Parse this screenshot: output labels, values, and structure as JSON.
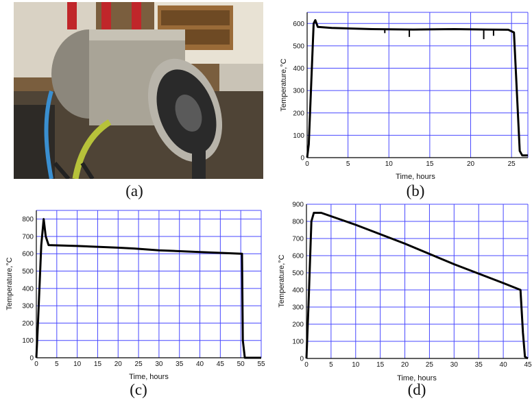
{
  "captions": {
    "a": "(a)",
    "b": "(b)",
    "c": "(c)",
    "d": "(d)"
  },
  "photo": {
    "description_icon": "furnace-photo"
  },
  "chart_data": [
    {
      "panel": "b",
      "type": "line",
      "xlabel": "Time, hours",
      "ylabel": "Temperature,°C",
      "xlim": [
        0,
        27
      ],
      "ylim": [
        0,
        650
      ],
      "xticks": [
        0,
        5,
        10,
        15,
        20,
        25
      ],
      "yticks": [
        0,
        100,
        200,
        300,
        400,
        500,
        600
      ],
      "grid": true,
      "series": [
        {
          "x": [
            0,
            0.2,
            0.8,
            1.0,
            1.3,
            3,
            8,
            13,
            18,
            22,
            24.6,
            25.3,
            26.0,
            26.3,
            27
          ],
          "y": [
            0,
            60,
            600,
            615,
            585,
            580,
            575,
            573,
            575,
            573,
            572,
            560,
            30,
            10,
            10
          ]
        }
      ],
      "dips": [
        [
          9.5,
          557
        ],
        [
          12.5,
          540
        ],
        [
          21.6,
          530
        ],
        [
          22.8,
          545
        ]
      ]
    },
    {
      "panel": "c",
      "type": "line",
      "xlabel": "Time, hours",
      "ylabel": "Temperature,°C",
      "xlim": [
        0,
        55
      ],
      "ylim": [
        0,
        850
      ],
      "xticks": [
        0,
        5,
        10,
        15,
        20,
        25,
        30,
        35,
        40,
        45,
        50,
        55
      ],
      "yticks": [
        0,
        100,
        200,
        300,
        400,
        500,
        600,
        700,
        800
      ],
      "grid": true,
      "series": [
        {
          "x": [
            0,
            0.4,
            1.2,
            1.8,
            2.3,
            3,
            10,
            20,
            24,
            30,
            40,
            50.3,
            50.5,
            51,
            55
          ],
          "y": [
            0,
            200,
            650,
            800,
            700,
            650,
            645,
            635,
            630,
            620,
            610,
            600,
            100,
            0,
            0
          ]
        }
      ]
    },
    {
      "panel": "d",
      "type": "line",
      "xlabel": "Time, hours",
      "ylabel": "Temperature,°C",
      "xlim": [
        0,
        45
      ],
      "ylim": [
        0,
        900
      ],
      "xticks": [
        0,
        5,
        10,
        15,
        20,
        25,
        30,
        35,
        40,
        45
      ],
      "yticks": [
        0,
        100,
        200,
        300,
        400,
        500,
        600,
        700,
        800,
        900
      ],
      "grid": true,
      "series": [
        {
          "x": [
            0,
            0.4,
            1.0,
            1.5,
            3,
            10,
            20,
            30,
            40,
            43.5,
            44,
            44.4,
            45
          ],
          "y": [
            0,
            300,
            800,
            850,
            850,
            780,
            670,
            550,
            440,
            400,
            150,
            10,
            0
          ]
        }
      ]
    }
  ]
}
